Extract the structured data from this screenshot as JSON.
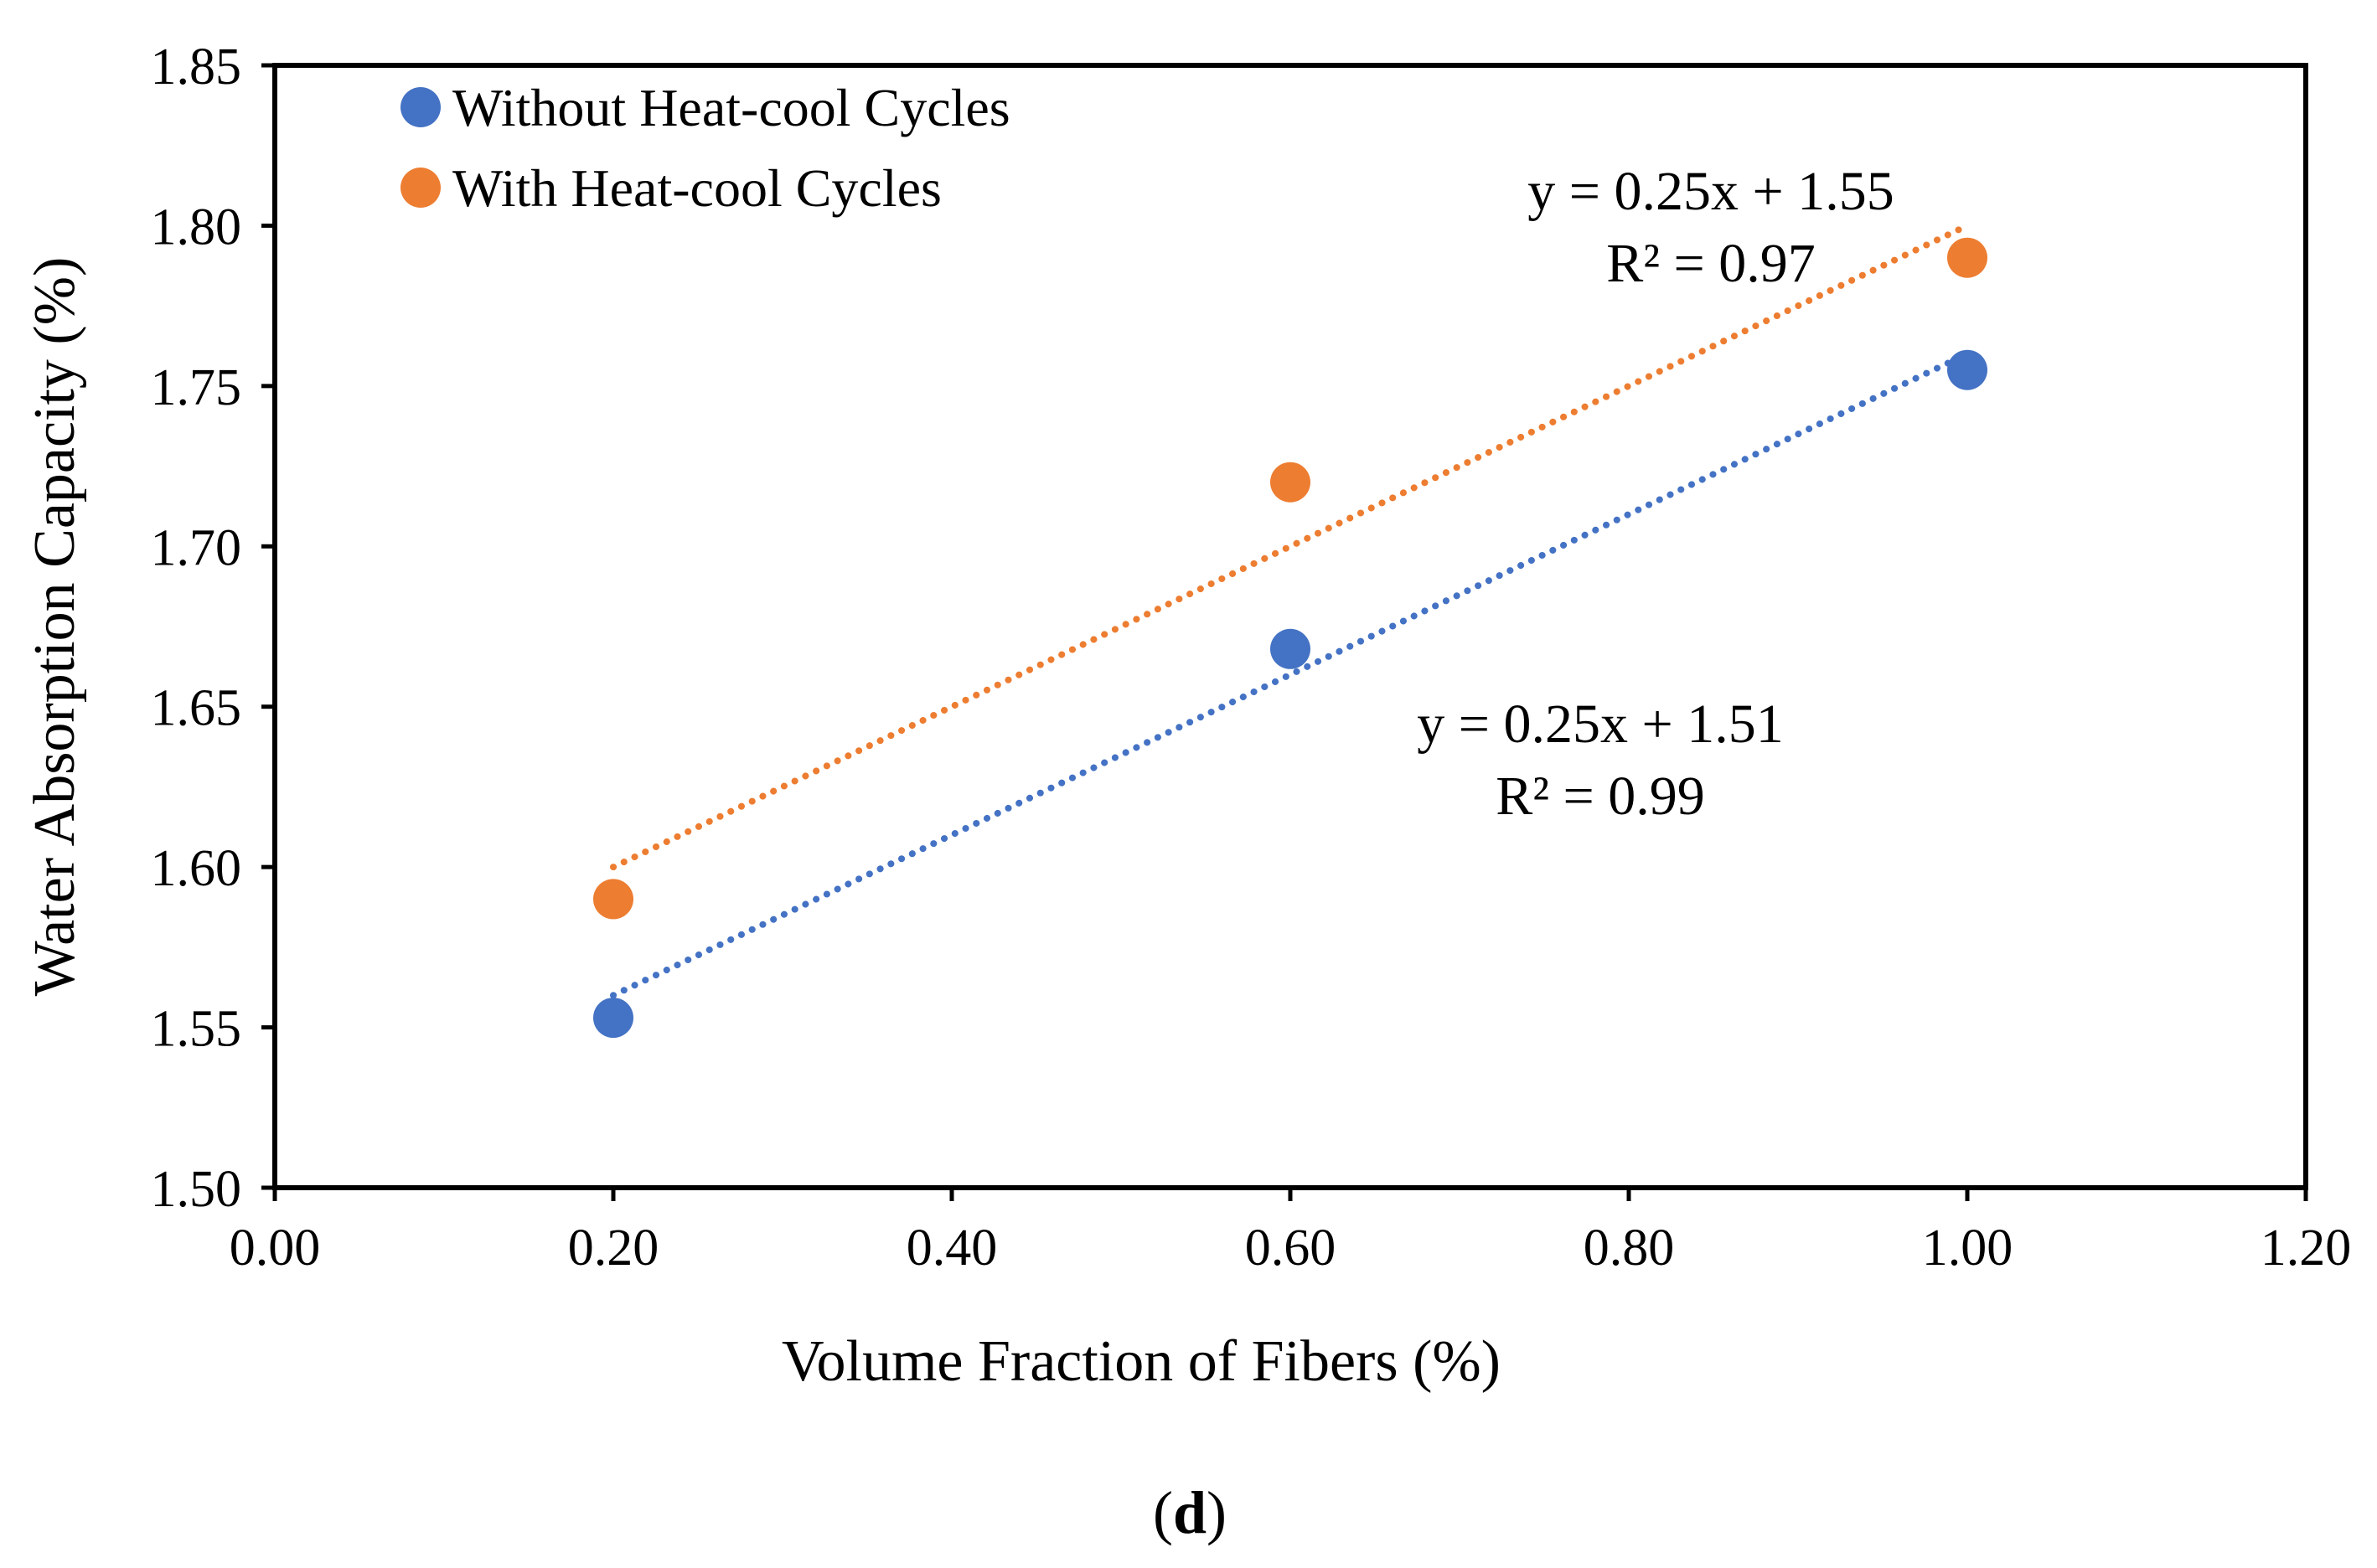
{
  "chart_data": {
    "type": "scatter",
    "xlabel": "Volume Fraction of Fibers (%)",
    "ylabel": "Water Absorption Capacity (%)",
    "xlim": [
      0.0,
      1.2
    ],
    "ylim": [
      1.5,
      1.85
    ],
    "x_ticks": [
      0.0,
      0.2,
      0.4,
      0.6,
      0.8,
      1.0,
      1.2
    ],
    "x_tick_labels": [
      "0.00",
      "0.20",
      "0.40",
      "0.60",
      "0.80",
      "1.00",
      "1.20"
    ],
    "y_ticks": [
      1.5,
      1.55,
      1.6,
      1.65,
      1.7,
      1.75,
      1.8,
      1.85
    ],
    "y_tick_labels": [
      "1.50",
      "1.55",
      "1.60",
      "1.65",
      "1.70",
      "1.75",
      "1.80",
      "1.85"
    ],
    "grid": false,
    "legend_position": "top-left",
    "panel_label": "d",
    "series": [
      {
        "name": "Without Heat-cool Cycles",
        "color": "#4472C4",
        "x": [
          0.2,
          0.6,
          1.0
        ],
        "y": [
          1.553,
          1.668,
          1.755
        ],
        "trendline": {
          "slope": 0.25,
          "intercept": 1.51,
          "x_range": [
            0.2,
            1.0
          ],
          "equation": "y = 0.25x + 1.51",
          "r_squared": "R² = 0.99"
        }
      },
      {
        "name": "With Heat-cool Cycles",
        "color": "#ED7D31",
        "x": [
          0.2,
          0.6,
          1.0
        ],
        "y": [
          1.59,
          1.72,
          1.79
        ],
        "trendline": {
          "slope": 0.25,
          "intercept": 1.55,
          "x_range": [
            0.2,
            1.0
          ],
          "equation": "y = 0.25x + 1.55",
          "r_squared": "R² = 0.97"
        }
      }
    ]
  }
}
